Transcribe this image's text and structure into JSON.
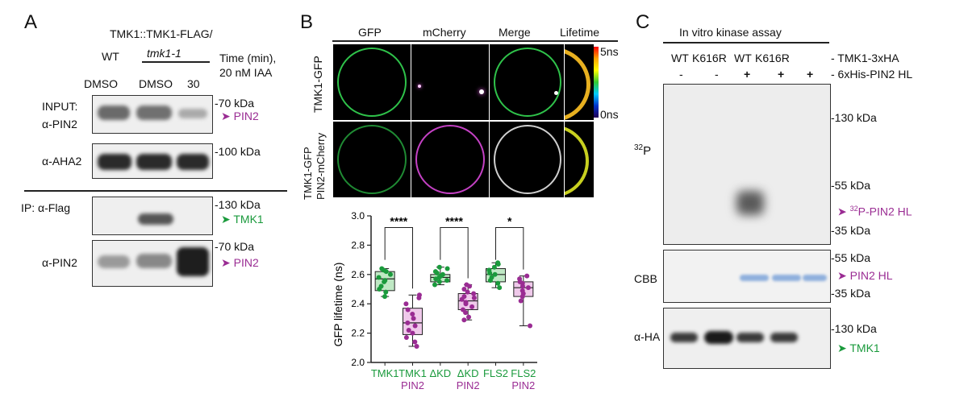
{
  "panel_a": {
    "letter": "A",
    "genotype_wt": "WT",
    "genotype_line1": "TMK1::TMK1-FLAG/",
    "genotype_line2": "tmk1-1",
    "time_header_1": "Time (min),",
    "time_header_2": "20 nM IAA",
    "lanes": [
      "DMSO",
      "DMSO",
      "30"
    ],
    "input_label_1": "INPUT:",
    "input_label_2": "α-PIN2",
    "aha2_label": "α-AHA2",
    "ip_label": "IP: α-Flag",
    "ip_pin2_label": "α-PIN2",
    "marker_70_a": "-70 kDa",
    "marker_100": "-100 kDa",
    "marker_130_a": "-130 kDa",
    "marker_70_b": "-70 kDa",
    "arrow_pin2_a": "PIN2",
    "arrow_tmk1": "TMK1",
    "arrow_pin2_b": "PIN2"
  },
  "panel_b": {
    "letter": "B",
    "columns": [
      "GFP",
      "mCherry",
      "Merge",
      "Lifetime"
    ],
    "row1_label": "TMK1-GFP",
    "row2_label_1": "TMK1-GFP",
    "row2_label_2": "PIN2-mCherry",
    "scale_top": "5ns",
    "scale_bottom": "0ns",
    "colors": {
      "gfp": "#2fc24a",
      "mcherry": "#c441c4",
      "merge": "#cfcfcf"
    }
  },
  "chart_data": {
    "type": "boxplot",
    "ylabel": "GFP lifetime (ns)",
    "ylim": [
      2.0,
      3.0
    ],
    "yticks": [
      "2.0",
      "2.2",
      "2.4",
      "2.6",
      "2.8",
      "3.0"
    ],
    "categories": [
      {
        "top": "TMK1",
        "bottom": "",
        "color": "#1a9a3c",
        "fill": "#bfe8c4",
        "q1": 2.49,
        "median": 2.57,
        "q3": 2.62,
        "min": 2.45,
        "max": 2.64,
        "points": [
          2.45,
          2.48,
          2.5,
          2.52,
          2.55,
          2.56,
          2.58,
          2.6,
          2.62,
          2.63,
          2.64
        ]
      },
      {
        "top": "TMK1",
        "bottom": "PIN2",
        "color": "#9a2c93",
        "fill": "#efc9ea",
        "q1": 2.19,
        "median": 2.27,
        "q3": 2.37,
        "min": 2.11,
        "max": 2.46,
        "points": [
          2.11,
          2.14,
          2.17,
          2.2,
          2.22,
          2.25,
          2.27,
          2.3,
          2.33,
          2.36,
          2.4,
          2.44,
          2.46
        ]
      },
      {
        "top": "ΔKD",
        "bottom": "",
        "color": "#1a9a3c",
        "fill": "#bfe8c4",
        "q1": 2.55,
        "median": 2.58,
        "q3": 2.6,
        "min": 2.53,
        "max": 2.65,
        "points": [
          2.53,
          2.55,
          2.56,
          2.57,
          2.58,
          2.59,
          2.6,
          2.61,
          2.62,
          2.64,
          2.65
        ]
      },
      {
        "top": "ΔKD",
        "bottom": "PIN2",
        "color": "#9a2c93",
        "fill": "#efc9ea",
        "q1": 2.36,
        "median": 2.42,
        "q3": 2.47,
        "min": 2.29,
        "max": 2.53,
        "points": [
          2.29,
          2.31,
          2.34,
          2.36,
          2.38,
          2.4,
          2.41,
          2.43,
          2.44,
          2.45,
          2.47,
          2.48,
          2.5,
          2.52,
          2.53
        ]
      },
      {
        "top": "FLS2",
        "bottom": "",
        "color": "#1a9a3c",
        "fill": "#bfe8c4",
        "q1": 2.55,
        "median": 2.6,
        "q3": 2.64,
        "min": 2.51,
        "max": 2.68,
        "points": [
          2.51,
          2.54,
          2.56,
          2.58,
          2.6,
          2.61,
          2.63,
          2.65,
          2.67,
          2.68
        ]
      },
      {
        "top": "FLS2",
        "bottom": "PIN2",
        "color": "#9a2c93",
        "fill": "#efc9ea",
        "q1": 2.45,
        "median": 2.51,
        "q3": 2.55,
        "min": 2.25,
        "max": 2.59,
        "points": [
          2.25,
          2.42,
          2.45,
          2.47,
          2.49,
          2.51,
          2.52,
          2.54,
          2.55,
          2.57,
          2.59
        ]
      }
    ],
    "significance": [
      {
        "from": 0,
        "to": 1,
        "label": "****"
      },
      {
        "from": 2,
        "to": 3,
        "label": "****"
      },
      {
        "from": 4,
        "to": 5,
        "label": "*"
      }
    ]
  },
  "panel_c": {
    "letter": "C",
    "title": "In vitro kinase assay",
    "lane_labels": [
      "WT",
      "K616R",
      "WT",
      "K616R"
    ],
    "row1_label": "- TMK1-3xHA",
    "row2_signs": [
      "-",
      "-",
      "+",
      "+",
      "+"
    ],
    "row2_label": "- 6xHis-PIN2 HL",
    "p32_mass": "32",
    "p32_symbol": "P",
    "cbb_label": "CBB",
    "ha_label": "α-HA",
    "marker_130_a": "-130 kDa",
    "marker_55_a": "-55 kDa",
    "marker_35_a": "-35 kDa",
    "marker_55_b": "-55 kDa",
    "marker_35_b": "-35 kDa",
    "marker_130_b": "-130 kDa",
    "arrow_p32_mass": "32",
    "arrow_p32": "P-PIN2 HL",
    "arrow_pin2hl": "PIN2 HL",
    "arrow_tmk1": "TMK1"
  }
}
